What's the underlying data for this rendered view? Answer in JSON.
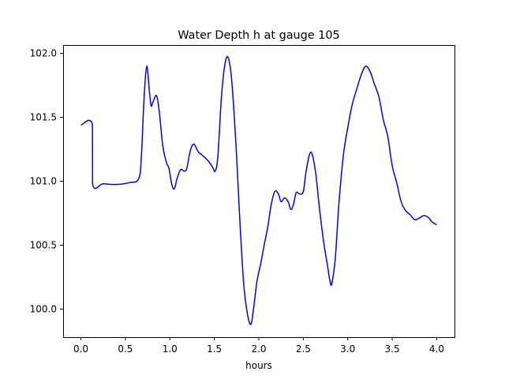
{
  "chart_data": {
    "type": "line",
    "title": "Water Depth h at gauge 105",
    "xlabel": "hours",
    "ylabel": "",
    "xlim": [
      -0.2,
      4.2
    ],
    "ylim": [
      99.78,
      102.06
    ],
    "x_ticks": [
      0.0,
      0.5,
      1.0,
      1.5,
      2.0,
      2.5,
      3.0,
      3.5,
      4.0
    ],
    "x_tick_labels": [
      "0.0",
      "0.5",
      "1.0",
      "1.5",
      "2.0",
      "2.5",
      "3.0",
      "3.5",
      "4.0"
    ],
    "y_ticks": [
      100.0,
      100.5,
      101.0,
      101.5,
      102.0
    ],
    "y_tick_labels": [
      "100.0",
      "100.5",
      "101.0",
      "101.5",
      "102.0"
    ],
    "grid": false,
    "legend": "none",
    "series": [
      {
        "color": "#0000ff",
        "points": [
          [
            0.0,
            101.44
          ],
          [
            0.13,
            101.44
          ],
          [
            0.131,
            100.98
          ],
          [
            0.25,
            100.98
          ],
          [
            0.4,
            100.975
          ],
          [
            0.55,
            100.99
          ],
          [
            0.65,
            101.02
          ],
          [
            0.68,
            101.2
          ],
          [
            0.71,
            101.65
          ],
          [
            0.74,
            101.9
          ],
          [
            0.77,
            101.7
          ],
          [
            0.79,
            101.59
          ],
          [
            0.81,
            101.62
          ],
          [
            0.85,
            101.67
          ],
          [
            0.88,
            101.55
          ],
          [
            0.92,
            101.28
          ],
          [
            0.96,
            101.15
          ],
          [
            0.99,
            101.1
          ],
          [
            1.02,
            100.98
          ],
          [
            1.05,
            100.94
          ],
          [
            1.08,
            101.02
          ],
          [
            1.12,
            101.09
          ],
          [
            1.16,
            101.08
          ],
          [
            1.19,
            101.1
          ],
          [
            1.23,
            101.24
          ],
          [
            1.27,
            101.29
          ],
          [
            1.32,
            101.23
          ],
          [
            1.37,
            101.2
          ],
          [
            1.43,
            101.16
          ],
          [
            1.48,
            101.11
          ],
          [
            1.51,
            101.08
          ],
          [
            1.54,
            101.2
          ],
          [
            1.58,
            101.66
          ],
          [
            1.62,
            101.92
          ],
          [
            1.66,
            101.96
          ],
          [
            1.7,
            101.75
          ],
          [
            1.75,
            101.2
          ],
          [
            1.79,
            100.65
          ],
          [
            1.83,
            100.2
          ],
          [
            1.87,
            99.97
          ],
          [
            1.91,
            99.88
          ],
          [
            1.94,
            100.0
          ],
          [
            1.98,
            100.22
          ],
          [
            2.02,
            100.35
          ],
          [
            2.06,
            100.5
          ],
          [
            2.1,
            100.64
          ],
          [
            2.14,
            100.82
          ],
          [
            2.18,
            100.92
          ],
          [
            2.22,
            100.9
          ],
          [
            2.25,
            100.84
          ],
          [
            2.29,
            100.87
          ],
          [
            2.33,
            100.84
          ],
          [
            2.36,
            100.78
          ],
          [
            2.39,
            100.82
          ],
          [
            2.42,
            100.91
          ],
          [
            2.46,
            100.9
          ],
          [
            2.5,
            100.92
          ],
          [
            2.53,
            101.07
          ],
          [
            2.57,
            101.21
          ],
          [
            2.6,
            101.21
          ],
          [
            2.64,
            101.06
          ],
          [
            2.68,
            100.8
          ],
          [
            2.73,
            100.52
          ],
          [
            2.77,
            100.35
          ],
          [
            2.8,
            100.22
          ],
          [
            2.82,
            100.2
          ],
          [
            2.86,
            100.4
          ],
          [
            2.9,
            100.82
          ],
          [
            2.95,
            101.2
          ],
          [
            3.0,
            101.42
          ],
          [
            3.05,
            101.6
          ],
          [
            3.1,
            101.72
          ],
          [
            3.15,
            101.83
          ],
          [
            3.2,
            101.9
          ],
          [
            3.25,
            101.86
          ],
          [
            3.3,
            101.76
          ],
          [
            3.35,
            101.66
          ],
          [
            3.4,
            101.48
          ],
          [
            3.45,
            101.35
          ],
          [
            3.5,
            101.12
          ],
          [
            3.55,
            100.99
          ],
          [
            3.6,
            100.84
          ],
          [
            3.65,
            100.77
          ],
          [
            3.7,
            100.74
          ],
          [
            3.75,
            100.7
          ],
          [
            3.8,
            100.71
          ],
          [
            3.85,
            100.73
          ],
          [
            3.9,
            100.72
          ],
          [
            3.95,
            100.68
          ],
          [
            4.0,
            100.66
          ]
        ]
      }
    ]
  }
}
